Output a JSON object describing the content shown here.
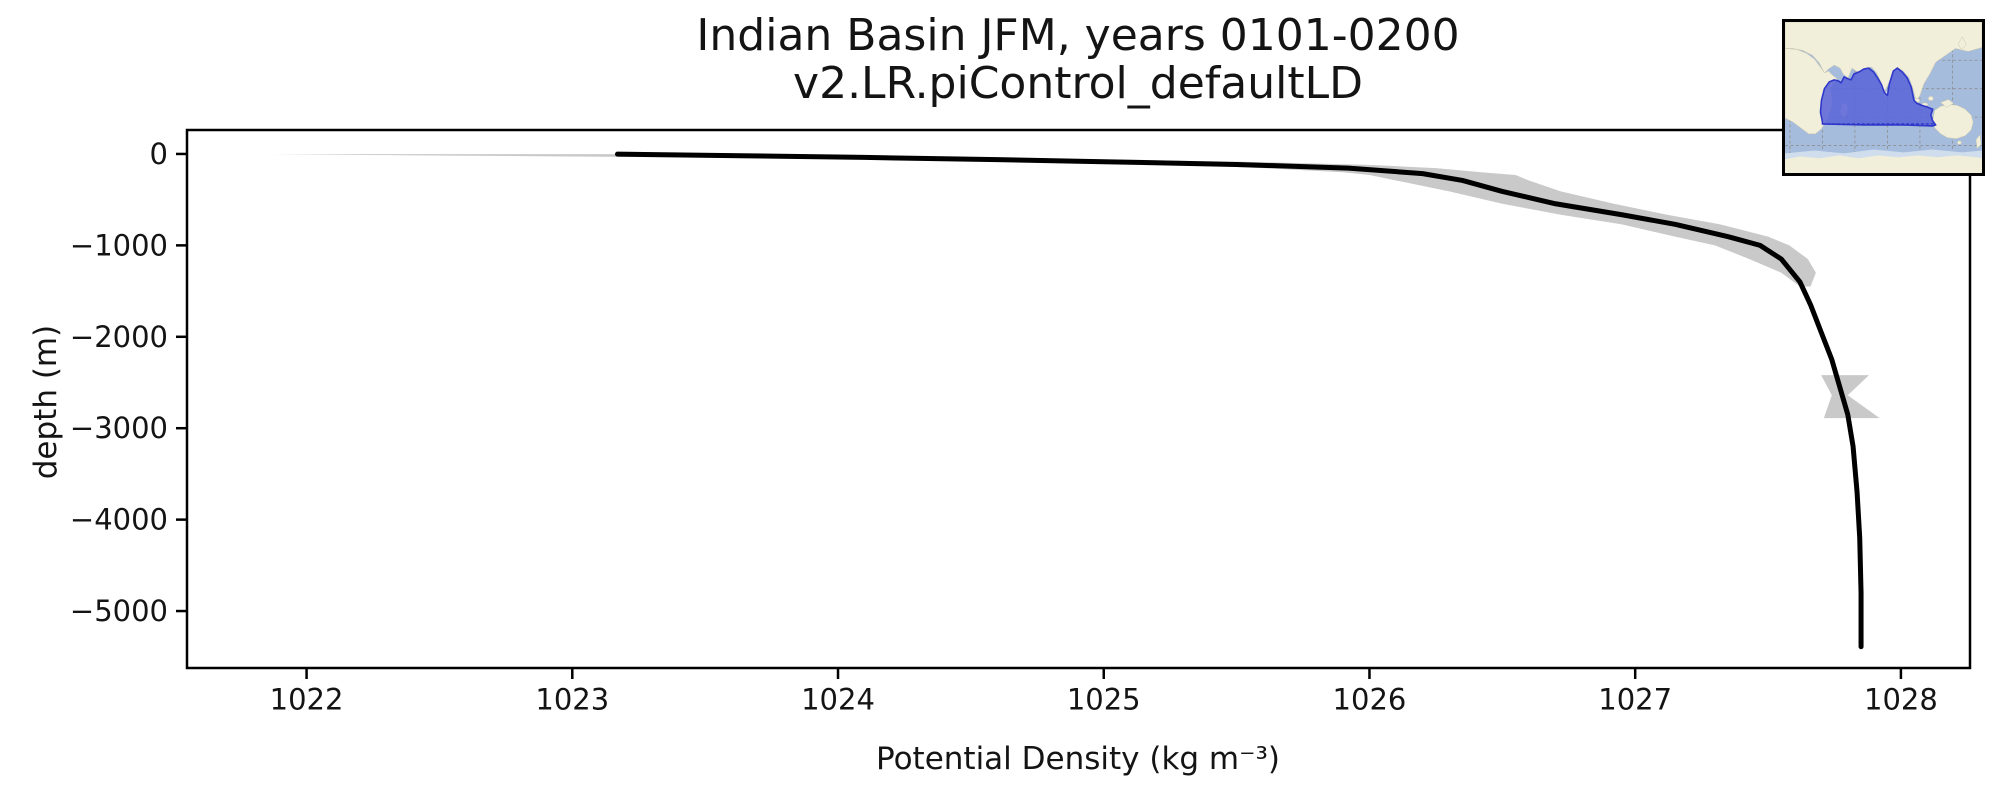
{
  "chart_data": {
    "type": "line",
    "title": "Indian Basin JFM, years 0101-0200",
    "subtitle": "v2.LR.piControl_defaultLD",
    "xlabel": "Potential Density (kg m⁻³)",
    "ylabel": "depth (m)",
    "xlim": [
      1021.55,
      1028.26
    ],
    "ylim": [
      -5623,
      262
    ],
    "grid": false,
    "legend": "none",
    "x_ticks": {
      "values": [
        1022,
        1023,
        1024,
        1025,
        1026,
        1027,
        1028
      ],
      "labels": [
        "1022",
        "1023",
        "1024",
        "1025",
        "1026",
        "1027",
        "1028"
      ]
    },
    "y_ticks": {
      "values": [
        0,
        -1000,
        -2000,
        -3000,
        -4000,
        -5000
      ],
      "labels": [
        "0",
        "−1000",
        "−2000",
        "−3000",
        "−4000",
        "−5000"
      ]
    },
    "series": [
      {
        "name": "mean potential density profile",
        "color": "#000000",
        "points": [
          [
            1023.17,
            -2
          ],
          [
            1023.6,
            -18
          ],
          [
            1024.1,
            -38
          ],
          [
            1024.6,
            -62
          ],
          [
            1025.0,
            -85
          ],
          [
            1025.5,
            -115
          ],
          [
            1025.92,
            -155
          ],
          [
            1026.2,
            -215
          ],
          [
            1026.35,
            -290
          ],
          [
            1026.5,
            -410
          ],
          [
            1026.7,
            -545
          ],
          [
            1026.95,
            -665
          ],
          [
            1027.15,
            -770
          ],
          [
            1027.35,
            -905
          ],
          [
            1027.47,
            -1000
          ],
          [
            1027.55,
            -1150
          ],
          [
            1027.62,
            -1400
          ],
          [
            1027.66,
            -1650
          ],
          [
            1027.7,
            -1950
          ],
          [
            1027.74,
            -2250
          ],
          [
            1027.77,
            -2550
          ],
          [
            1027.8,
            -2850
          ],
          [
            1027.82,
            -3200
          ],
          [
            1027.835,
            -3700
          ],
          [
            1027.845,
            -4200
          ],
          [
            1027.85,
            -4800
          ],
          [
            1027.85,
            -5390
          ]
        ]
      }
    ],
    "envelope": {
      "name": "spread band (min-max around mean)",
      "color": "#c9c9c9",
      "rows": [
        [
          -2,
          1021.87,
          1023.35
        ],
        [
          -15,
          1022.4,
          1023.8
        ],
        [
          -35,
          1023.3,
          1024.35
        ],
        [
          -60,
          1024.1,
          1025.0
        ],
        [
          -90,
          1024.8,
          1025.6
        ],
        [
          -120,
          1025.3,
          1026.0
        ],
        [
          -155,
          1025.6,
          1026.25
        ],
        [
          -200,
          1025.9,
          1026.42
        ],
        [
          -230,
          1026.0,
          1026.55
        ],
        [
          -290,
          1026.1,
          1026.6
        ],
        [
          -410,
          1026.3,
          1026.72
        ],
        [
          -545,
          1026.5,
          1026.92
        ],
        [
          -665,
          1026.72,
          1027.12
        ],
        [
          -770,
          1026.95,
          1027.32
        ],
        [
          -905,
          1027.15,
          1027.5
        ],
        [
          -1000,
          1027.3,
          1027.58
        ],
        [
          -1150,
          1027.43,
          1027.65
        ],
        [
          -1300,
          1027.55,
          1027.68
        ],
        [
          -1450,
          1027.62,
          1027.66
        ]
      ]
    },
    "deep_patch": {
      "name": "deep spread patch (hourglass)",
      "color": "#c9c9c9",
      "rows": [
        [
          -2420,
          1027.7,
          1027.88
        ],
        [
          -2640,
          1027.74,
          1027.8
        ],
        [
          -2890,
          1027.71,
          1027.92
        ]
      ]
    }
  },
  "inset_map": {
    "ocean_color": "#a6bcdc",
    "land_color": "#f1eed9",
    "land_edge_color": "#cdc8ac",
    "ice_color": "#cfdded",
    "region_fill": "#5b66d8",
    "region_outline": "#2f37c9",
    "grid_color": "#8d8d8d"
  }
}
